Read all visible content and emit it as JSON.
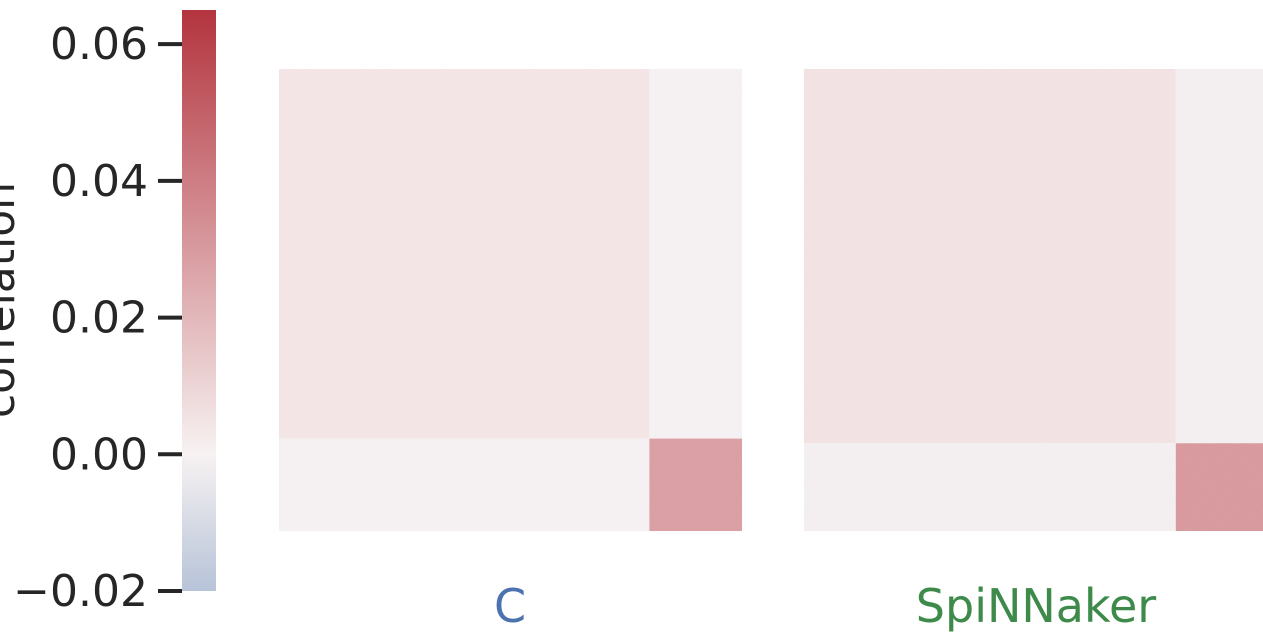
{
  "chart_data": {
    "type": "heatmap",
    "colorbar": {
      "label": "correlation",
      "range": [
        -0.02,
        0.065
      ],
      "ticks": [
        {
          "value": 0.06,
          "label": "0.06"
        },
        {
          "value": 0.04,
          "label": "0.04"
        },
        {
          "value": 0.02,
          "label": "0.02"
        },
        {
          "value": 0.0,
          "label": "0.00"
        },
        {
          "value": -0.02,
          "label": "−0.02"
        }
      ],
      "colors": {
        "negative": "#b7c3d8",
        "zero": "#f7f2f2",
        "positive": "#b3343e"
      }
    },
    "panels": [
      {
        "title": "C",
        "title_color": "#4c72b0",
        "block_split_fraction": 0.8,
        "blocks": {
          "exc_exc": 0.005,
          "exc_inh": -0.001,
          "inh_exc": -0.001,
          "inh_inh": 0.03
        }
      },
      {
        "title": "SpiNNaker",
        "title_color": "#3d8a4a",
        "block_split_fraction": 0.81,
        "blocks": {
          "exc_exc": 0.006,
          "exc_inh": -0.0015,
          "inh_exc": -0.0015,
          "inh_inh": 0.032
        }
      }
    ]
  }
}
